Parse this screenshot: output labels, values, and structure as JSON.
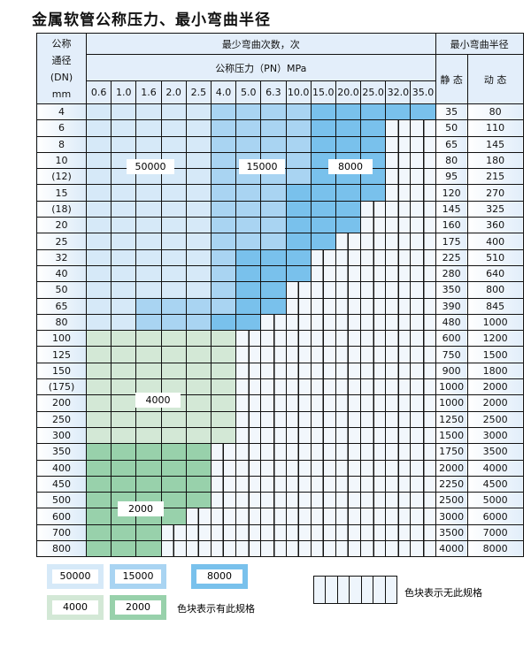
{
  "title": "金属软管公称压力、最小弯曲半径",
  "header": {
    "dn_label": "公称\n通径\n(DN)\nmm",
    "cycles_label": "最少弯曲次数，次",
    "pressure_label": "公称压力（PN）MPa",
    "radius_label": "最小弯曲半径",
    "static_label": "静 态",
    "dynamic_label": "动 态",
    "pressures": [
      "0.6",
      "1.0",
      "1.6",
      "2.0",
      "2.5",
      "4.0",
      "5.0",
      "6.3",
      "10.0",
      "15.0",
      "20.0",
      "25.0",
      "32.0",
      "35.0"
    ]
  },
  "categories": {
    "A": {
      "value": "50000",
      "color": "#d6e9f8"
    },
    "B": {
      "value": "15000",
      "color": "#a9d4f2"
    },
    "C": {
      "value": "8000",
      "color": "#79c1ec"
    },
    "D": {
      "value": "4000",
      "color": "#d3e8d6"
    },
    "E": {
      "value": "2000",
      "color": "#98d1ab"
    },
    "N": {
      "value": "",
      "color": "#f2f7fc"
    }
  },
  "rows": [
    {
      "dn": "4",
      "static": "35",
      "dynamic": "80",
      "cells": "AAAAABBBBCCCCC"
    },
    {
      "dn": "6",
      "static": "50",
      "dynamic": "110",
      "cells": "AAAAABBBBCCCNN"
    },
    {
      "dn": "8",
      "static": "65",
      "dynamic": "145",
      "cells": "AAAAABBBBCCCNN"
    },
    {
      "dn": "10",
      "static": "80",
      "dynamic": "180",
      "cells": "AAAAABBBBCCCNN"
    },
    {
      "dn": "(12)",
      "static": "95",
      "dynamic": "215",
      "cells": "AAAAABBBBCCCNN"
    },
    {
      "dn": "15",
      "static": "120",
      "dynamic": "270",
      "cells": "AAAAABBBCCCCNN"
    },
    {
      "dn": "(18)",
      "static": "145",
      "dynamic": "325",
      "cells": "AAAAABBBCCCNNN"
    },
    {
      "dn": "20",
      "static": "160",
      "dynamic": "360",
      "cells": "AAAAABBBCCCNNN"
    },
    {
      "dn": "25",
      "static": "175",
      "dynamic": "400",
      "cells": "AAAAABBBCCNNNN"
    },
    {
      "dn": "32",
      "static": "225",
      "dynamic": "510",
      "cells": "AAAAABCCCNNNNN"
    },
    {
      "dn": "40",
      "static": "280",
      "dynamic": "640",
      "cells": "AAAAABCCCNNNNN"
    },
    {
      "dn": "50",
      "static": "350",
      "dynamic": "800",
      "cells": "AAAAABCCNNNNNN"
    },
    {
      "dn": "65",
      "static": "390",
      "dynamic": "845",
      "cells": "AABBBBCCNNNNNN"
    },
    {
      "dn": "80",
      "static": "480",
      "dynamic": "1000",
      "cells": "AABBBCCNNNNNNN"
    },
    {
      "dn": "100",
      "static": "600",
      "dynamic": "1200",
      "cells": "DDDDDDNNNNNNNN"
    },
    {
      "dn": "125",
      "static": "750",
      "dynamic": "1500",
      "cells": "DDDDDDNNNNNNNN"
    },
    {
      "dn": "150",
      "static": "900",
      "dynamic": "1800",
      "cells": "DDDDDDNNNNNNNN"
    },
    {
      "dn": "(175)",
      "static": "1000",
      "dynamic": "2000",
      "cells": "DDDDDDNNNNNNNN"
    },
    {
      "dn": "200",
      "static": "1000",
      "dynamic": "2000",
      "cells": "DDDDDDNNNNNNNN"
    },
    {
      "dn": "250",
      "static": "1250",
      "dynamic": "2500",
      "cells": "DDDDDDNNNNNNNN"
    },
    {
      "dn": "300",
      "static": "1500",
      "dynamic": "3000",
      "cells": "DDDDDDNNNNNNNN"
    },
    {
      "dn": "350",
      "static": "1750",
      "dynamic": "3500",
      "cells": "EEEEENNNNNNNNN"
    },
    {
      "dn": "400",
      "static": "2000",
      "dynamic": "4000",
      "cells": "EEEEENNNNNNNNN"
    },
    {
      "dn": "450",
      "static": "2250",
      "dynamic": "4500",
      "cells": "EEEEENNNNNNNNN"
    },
    {
      "dn": "500",
      "static": "2500",
      "dynamic": "5000",
      "cells": "EEEEENNNNNNNNN"
    },
    {
      "dn": "600",
      "static": "3000",
      "dynamic": "6000",
      "cells": "EEEENNNNNNNNNN"
    },
    {
      "dn": "700",
      "static": "3500",
      "dynamic": "7000",
      "cells": "EEENNNNNNNNNNN"
    },
    {
      "dn": "800",
      "static": "4000",
      "dynamic": "8000",
      "cells": "EEENNNNNNNNNNN"
    }
  ],
  "legend": {
    "has_spec_text": "色块表示有此规格",
    "no_spec_text": "色块表示无此规格"
  }
}
